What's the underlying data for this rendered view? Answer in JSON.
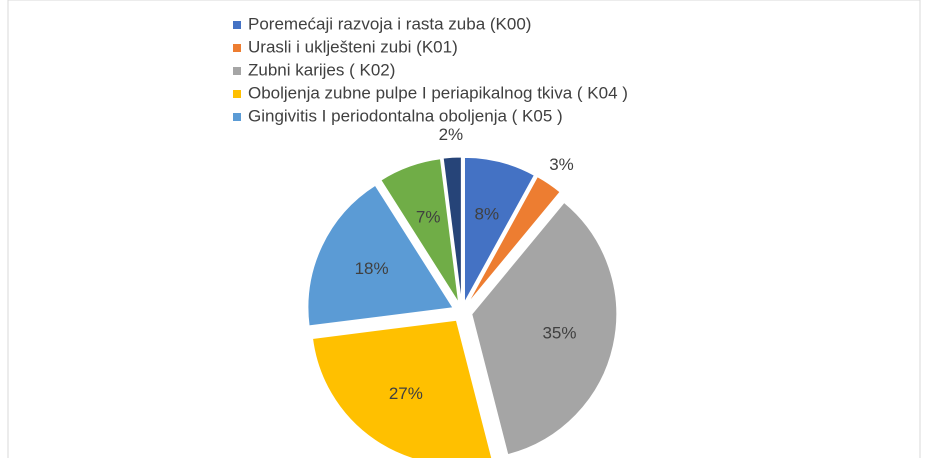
{
  "chart_data": {
    "type": "pie",
    "categories": [
      "Poremećaji razvoja i rasta zuba (K00)",
      " Urasli i uklješteni zubi (K01)",
      "Zubni karijes ( K02)",
      "Oboljenja zubne pulpe I periapikalnog tkiva ( K04 )",
      "Gingivitis I periodontalna oboljenja ( K05 )",
      null,
      null
    ],
    "values": [
      8,
      3,
      35,
      27,
      18,
      7,
      2
    ],
    "value_labels": [
      "8%",
      "3%",
      "35%",
      "27%",
      "18%",
      "7%",
      "2%"
    ],
    "colors": [
      "#4472c4",
      "#ed7d31",
      "#a5a5a5",
      "#ffc000",
      "#5b9bd5",
      "#70ad47",
      "#264478"
    ]
  }
}
